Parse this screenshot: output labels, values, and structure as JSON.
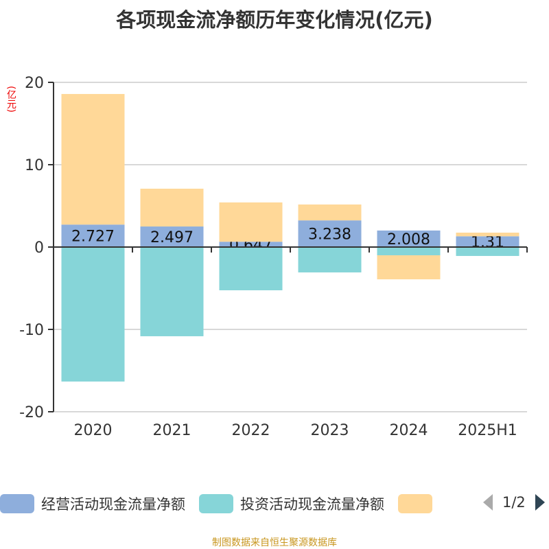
{
  "chart_data": {
    "type": "bar",
    "stacked": true,
    "title": "各项现金流净额历年变化情况(亿元)",
    "ylabel": "(亿元)",
    "categories": [
      "2020",
      "2021",
      "2022",
      "2023",
      "2024",
      "2025H1"
    ],
    "ylim": [
      -20,
      20
    ],
    "yticks": [
      20,
      10,
      0,
      -10,
      -20
    ],
    "grid": true,
    "legend_position": "bottom",
    "series": [
      {
        "name": "经营活动现金流量净额",
        "color": "#8eaedc",
        "values": [
          2.727,
          2.497,
          0.647,
          3.238,
          2.008,
          1.31
        ],
        "labels": [
          "2.727",
          "2.497",
          "0.647",
          "3.238",
          "2.008",
          "1.31"
        ]
      },
      {
        "name": "投资活动现金流量净额",
        "color": "#86d5d8",
        "values": [
          -16.33,
          -10.83,
          -5.25,
          -3.08,
          -1.0,
          -1.08
        ]
      },
      {
        "name": "",
        "color": "#ffd898",
        "values": [
          15.86,
          4.59,
          4.77,
          1.93,
          -2.92,
          0.44
        ]
      }
    ]
  },
  "legend": {
    "page": "1/2"
  },
  "footer": "制图数据来自恒生聚源数据库"
}
